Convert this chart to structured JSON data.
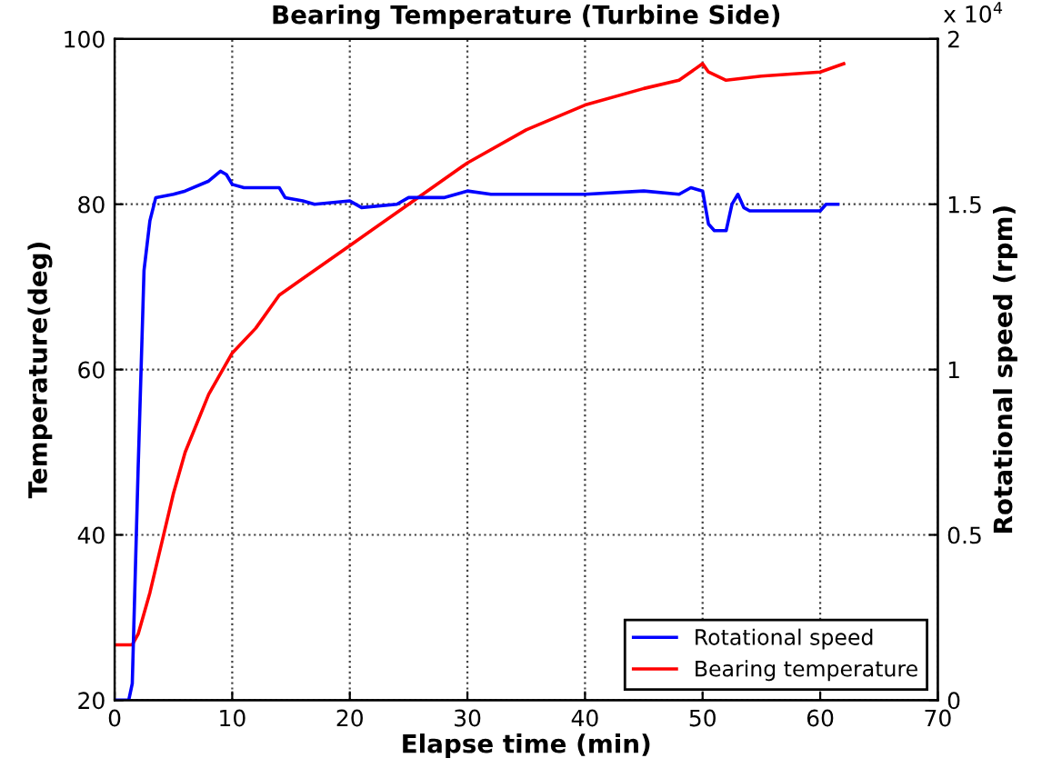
{
  "chart_data": {
    "type": "line",
    "title": "Bearing Temperature (Turbine Side)",
    "xlabel": "Elapse time (min)",
    "ylabel": "Temperature(deg)",
    "y2label": "Rotational speed (rpm)",
    "xlim": [
      0,
      70
    ],
    "xticks": [
      0,
      10,
      20,
      30,
      40,
      50,
      60,
      70
    ],
    "ylim": [
      20,
      100
    ],
    "yticks": [
      20,
      40,
      60,
      80,
      100
    ],
    "y2lim": [
      0,
      2
    ],
    "y2ticks": [
      0,
      0.5,
      1,
      1.5,
      2
    ],
    "annotations": [
      "x 10$^{4}$"
    ],
    "grid": true,
    "legend": "bottom right",
    "line_style": "solid",
    "series": [
      {
        "name": "Rotational speed",
        "color": "#0000ff",
        "axis": "y2",
        "x": [
          0,
          1.2,
          1.5,
          2,
          2.5,
          3,
          3.5,
          5,
          6,
          8,
          9,
          9.5,
          10,
          11,
          14,
          14.5,
          16,
          17,
          20,
          21,
          24,
          25,
          28,
          30,
          32,
          40,
          45,
          48,
          49,
          50,
          50.5,
          51,
          52,
          52.5,
          53,
          53.5,
          54,
          60,
          60.5,
          61.5
        ],
        "values": [
          0,
          0,
          0.05,
          0.7,
          1.3,
          1.45,
          1.52,
          1.53,
          1.54,
          1.57,
          1.6,
          1.59,
          1.56,
          1.55,
          1.55,
          1.52,
          1.51,
          1.5,
          1.51,
          1.49,
          1.5,
          1.52,
          1.52,
          1.54,
          1.53,
          1.53,
          1.54,
          1.53,
          1.55,
          1.54,
          1.44,
          1.42,
          1.42,
          1.5,
          1.53,
          1.49,
          1.48,
          1.48,
          1.5,
          1.5
        ]
      },
      {
        "name": "Bearing temperature",
        "color": "#ff0000",
        "x": [
          0,
          1.5,
          2,
          3,
          4,
          5,
          6,
          8,
          10,
          12,
          14,
          16,
          20,
          25,
          30,
          35,
          40,
          45,
          48,
          50,
          50.5,
          52,
          55,
          60,
          62
        ],
        "values": [
          26.7,
          26.7,
          28,
          33,
          39,
          45,
          50,
          57,
          62,
          65,
          69,
          71,
          75,
          80,
          85,
          89,
          92,
          94,
          95,
          97,
          96,
          95,
          95.5,
          96,
          97
        ]
      }
    ]
  }
}
